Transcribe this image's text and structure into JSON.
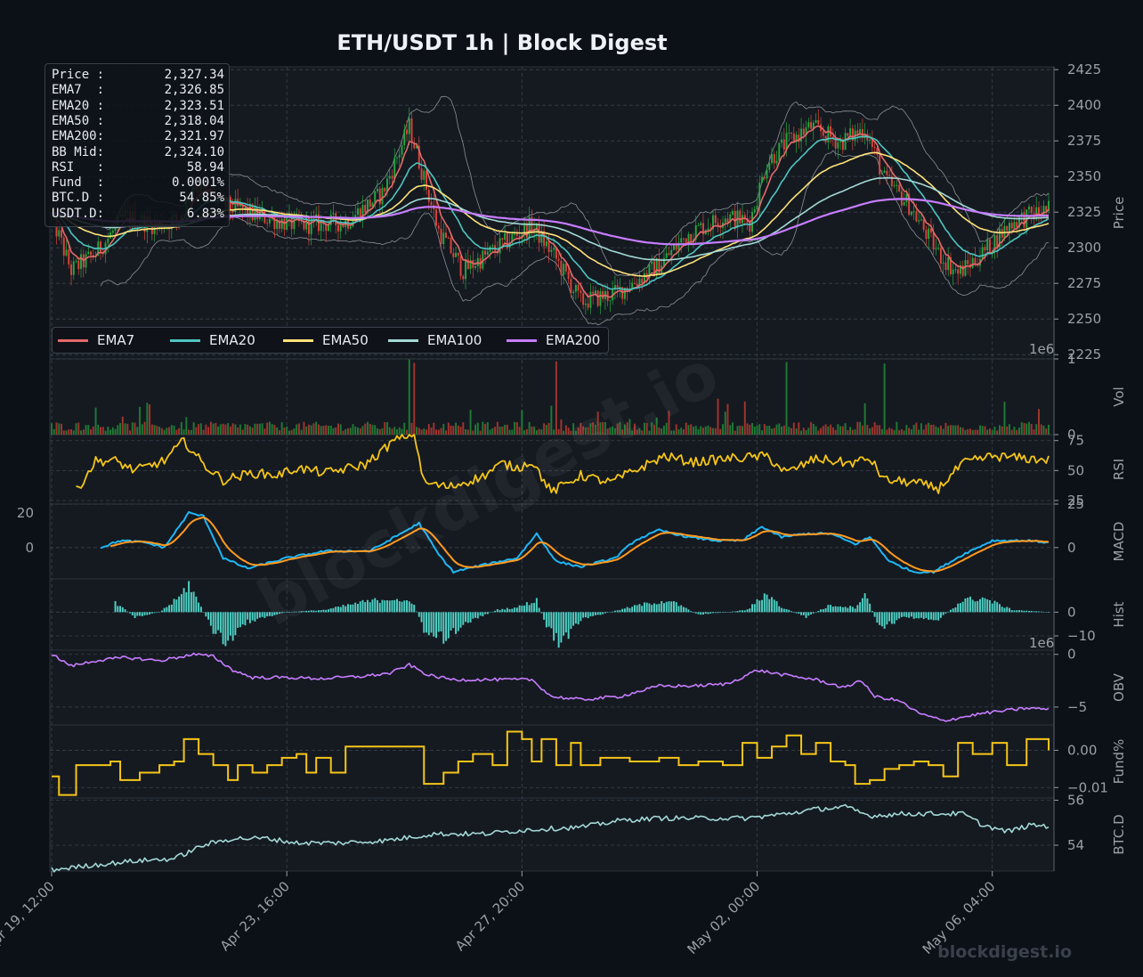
{
  "title": "ETH/USDT  1h  |  Block Digest",
  "watermark_center": "blockdigest.io",
  "watermark_corner": "blockdigest.io",
  "info_box": [
    {
      "key": "Price :",
      "value": "2,327.34"
    },
    {
      "key": "EMA7  :",
      "value": "2,326.85"
    },
    {
      "key": "EMA20 :",
      "value": "2,323.51"
    },
    {
      "key": "EMA50 :",
      "value": "2,318.04"
    },
    {
      "key": "EMA200:",
      "value": "2,321.97"
    },
    {
      "key": "BB Mid:",
      "value": "2,324.10"
    },
    {
      "key": "RSI   :",
      "value": "58.94"
    },
    {
      "key": "Fund  :",
      "value": "0.0001%"
    },
    {
      "key": "BTC.D :",
      "value": "54.85%"
    },
    {
      "key": "USDT.D:",
      "value": "6.83%"
    }
  ],
  "legend": [
    {
      "name": "EMA7",
      "color": "#e36a6a"
    },
    {
      "name": "EMA20",
      "color": "#4fc5c1"
    },
    {
      "name": "EMA50",
      "color": "#ffe27a"
    },
    {
      "name": "EMA100",
      "color": "#a3d9d6"
    },
    {
      "name": "EMA200",
      "color": "#c77dff"
    }
  ],
  "colors": {
    "bg": "#0c1017",
    "panel": "#151a21",
    "grid": "#3a414b",
    "up": "#26a641",
    "down": "#d9453b",
    "rsi": "#f5c518",
    "macd": "#1fb6f5",
    "signal": "#ff9a1f",
    "hist": "#4fd1c5",
    "obv": "#c77dff",
    "fund": "#f5c518",
    "btcd": "#a3d9d6",
    "bb": "#8a8f96"
  },
  "chart_data": {
    "type": "line",
    "x_ticks": [
      "Apr 19, 12:00",
      "Apr 23, 16:00",
      "Apr 27, 20:00",
      "May 02, 00:00",
      "May 06, 04:00"
    ],
    "n_bars": 408,
    "price": {
      "ylabel": "Price",
      "ylim": [
        2222,
        2427
      ],
      "yticks": [
        "2425",
        "2400",
        "2375",
        "2350",
        "2325",
        "2300",
        "2275",
        "2250",
        "2225"
      ],
      "close_keyframes": [
        [
          0,
          2322
        ],
        [
          8,
          2284
        ],
        [
          18,
          2296
        ],
        [
          30,
          2322
        ],
        [
          42,
          2316
        ],
        [
          52,
          2320
        ],
        [
          58,
          2345
        ],
        [
          70,
          2330
        ],
        [
          85,
          2322
        ],
        [
          100,
          2316
        ],
        [
          120,
          2318
        ],
        [
          135,
          2338
        ],
        [
          146,
          2385
        ],
        [
          158,
          2312
        ],
        [
          168,
          2284
        ],
        [
          182,
          2300
        ],
        [
          196,
          2316
        ],
        [
          206,
          2292
        ],
        [
          216,
          2262
        ],
        [
          230,
          2268
        ],
        [
          238,
          2276
        ],
        [
          248,
          2288
        ],
        [
          260,
          2310
        ],
        [
          275,
          2322
        ],
        [
          285,
          2318
        ],
        [
          292,
          2360
        ],
        [
          300,
          2374
        ],
        [
          310,
          2385
        ],
        [
          322,
          2374
        ],
        [
          332,
          2384
        ],
        [
          340,
          2348
        ],
        [
          350,
          2330
        ],
        [
          362,
          2296
        ],
        [
          370,
          2282
        ],
        [
          380,
          2296
        ],
        [
          392,
          2318
        ],
        [
          407,
          2327
        ]
      ]
    },
    "volume": {
      "ylabel": "Vol",
      "ylim": [
        0,
        1
      ],
      "yticks": [
        "1",
        "0"
      ],
      "multiplier_label": "1e6"
    },
    "rsi": {
      "ylabel": "RSI",
      "ylim": [
        22,
        80
      ],
      "yticks": [
        "75",
        "50",
        "25"
      ],
      "start_bar": 10,
      "keyframes": [
        [
          10,
          33
        ],
        [
          18,
          58
        ],
        [
          26,
          58
        ],
        [
          34,
          50
        ],
        [
          46,
          58
        ],
        [
          54,
          75
        ],
        [
          62,
          55
        ],
        [
          70,
          42
        ],
        [
          82,
          48
        ],
        [
          92,
          46
        ],
        [
          100,
          52
        ],
        [
          112,
          48
        ],
        [
          128,
          55
        ],
        [
          140,
          75
        ],
        [
          148,
          82
        ],
        [
          152,
          40
        ],
        [
          162,
          36
        ],
        [
          176,
          45
        ],
        [
          184,
          56
        ],
        [
          190,
          52
        ],
        [
          196,
          58
        ],
        [
          204,
          32
        ],
        [
          216,
          46
        ],
        [
          228,
          40
        ],
        [
          240,
          52
        ],
        [
          250,
          62
        ],
        [
          262,
          57
        ],
        [
          276,
          60
        ],
        [
          292,
          62
        ],
        [
          300,
          48
        ],
        [
          312,
          60
        ],
        [
          326,
          56
        ],
        [
          334,
          60
        ],
        [
          340,
          42
        ],
        [
          352,
          40
        ],
        [
          362,
          35
        ],
        [
          372,
          56
        ],
        [
          384,
          62
        ],
        [
          398,
          60
        ],
        [
          407,
          59
        ]
      ]
    },
    "macd": {
      "ylabel": "MACD",
      "ylim": [
        -18,
        25
      ],
      "yticks": [
        "25",
        "0"
      ],
      "left_yticks": [
        "20",
        "0"
      ],
      "start_bar": 20,
      "keyframes": [
        [
          20,
          0
        ],
        [
          28,
          4
        ],
        [
          38,
          3
        ],
        [
          46,
          0
        ],
        [
          56,
          20
        ],
        [
          62,
          18
        ],
        [
          70,
          -6
        ],
        [
          80,
          -12
        ],
        [
          96,
          -6
        ],
        [
          112,
          -2
        ],
        [
          130,
          -2
        ],
        [
          140,
          6
        ],
        [
          150,
          14
        ],
        [
          158,
          -4
        ],
        [
          164,
          -14
        ],
        [
          176,
          -10
        ],
        [
          190,
          -6
        ],
        [
          198,
          8
        ],
        [
          206,
          -8
        ],
        [
          216,
          -11
        ],
        [
          230,
          -6
        ],
        [
          238,
          4
        ],
        [
          248,
          10
        ],
        [
          260,
          6
        ],
        [
          272,
          4
        ],
        [
          282,
          4
        ],
        [
          290,
          12
        ],
        [
          298,
          6
        ],
        [
          308,
          8
        ],
        [
          318,
          8
        ],
        [
          328,
          2
        ],
        [
          334,
          6
        ],
        [
          342,
          -8
        ],
        [
          352,
          -14
        ],
        [
          360,
          -14
        ],
        [
          372,
          -4
        ],
        [
          384,
          4
        ],
        [
          398,
          4
        ],
        [
          407,
          3
        ]
      ]
    },
    "hist": {
      "ylabel": "Hist",
      "ylim": [
        -16,
        14
      ],
      "yticks": [
        "0",
        "−10"
      ],
      "start_bar": 26,
      "keyframes": [
        [
          26,
          4
        ],
        [
          34,
          -2
        ],
        [
          44,
          0
        ],
        [
          52,
          6
        ],
        [
          56,
          12
        ],
        [
          60,
          4
        ],
        [
          66,
          -8
        ],
        [
          72,
          -13
        ],
        [
          80,
          -4
        ],
        [
          96,
          0
        ],
        [
          112,
          1
        ],
        [
          126,
          4
        ],
        [
          140,
          6
        ],
        [
          148,
          3
        ],
        [
          152,
          -8
        ],
        [
          160,
          -11
        ],
        [
          170,
          -4
        ],
        [
          182,
          1
        ],
        [
          190,
          2
        ],
        [
          198,
          5
        ],
        [
          202,
          -6
        ],
        [
          208,
          -14
        ],
        [
          216,
          -3
        ],
        [
          228,
          0
        ],
        [
          240,
          3
        ],
        [
          252,
          5
        ],
        [
          264,
          -1
        ],
        [
          276,
          0
        ],
        [
          284,
          1
        ],
        [
          292,
          8
        ],
        [
          298,
          2
        ],
        [
          308,
          -2
        ],
        [
          318,
          3
        ],
        [
          328,
          2
        ],
        [
          332,
          8
        ],
        [
          338,
          -7
        ],
        [
          348,
          -2
        ],
        [
          362,
          -3
        ],
        [
          372,
          5
        ],
        [
          380,
          6
        ],
        [
          392,
          1
        ],
        [
          407,
          0
        ]
      ]
    },
    "obv": {
      "ylabel": "OBV",
      "ylim": [
        -6.7,
        0.4
      ],
      "yticks": [
        "0",
        "−5"
      ],
      "multiplier_label": "1e6",
      "keyframes": [
        [
          0,
          0
        ],
        [
          8,
          -1.1
        ],
        [
          18,
          -0.6
        ],
        [
          30,
          -0.3
        ],
        [
          44,
          -0.6
        ],
        [
          58,
          0
        ],
        [
          66,
          -0.2
        ],
        [
          74,
          -1.5
        ],
        [
          82,
          -2.2
        ],
        [
          96,
          -2.2
        ],
        [
          110,
          -2.3
        ],
        [
          126,
          -2.1
        ],
        [
          138,
          -1.8
        ],
        [
          146,
          -1
        ],
        [
          154,
          -2
        ],
        [
          164,
          -2.4
        ],
        [
          180,
          -2.4
        ],
        [
          196,
          -2.4
        ],
        [
          204,
          -4
        ],
        [
          216,
          -4.3
        ],
        [
          232,
          -4
        ],
        [
          248,
          -3
        ],
        [
          262,
          -3
        ],
        [
          276,
          -2.8
        ],
        [
          288,
          -1.5
        ],
        [
          300,
          -2
        ],
        [
          312,
          -2.4
        ],
        [
          324,
          -3.2
        ],
        [
          330,
          -2.4
        ],
        [
          336,
          -4
        ],
        [
          346,
          -4.4
        ],
        [
          354,
          -5.6
        ],
        [
          364,
          -6.3
        ],
        [
          380,
          -5.6
        ],
        [
          398,
          -5.1
        ],
        [
          407,
          -5.2
        ]
      ]
    },
    "funding": {
      "ylabel": "Fund%",
      "ylim": [
        -0.0128,
        0.0068
      ],
      "yticks": [
        "0.00",
        "−0.01"
      ],
      "steps": [
        [
          0,
          -0.007
        ],
        [
          3,
          -0.012
        ],
        [
          10,
          -0.004
        ],
        [
          20,
          -0.004
        ],
        [
          24,
          -0.003
        ],
        [
          28,
          -0.008
        ],
        [
          36,
          -0.006
        ],
        [
          44,
          -0.004
        ],
        [
          50,
          -0.003
        ],
        [
          54,
          0.003
        ],
        [
          60,
          -0.001
        ],
        [
          66,
          -0.004
        ],
        [
          72,
          -0.008
        ],
        [
          76,
          -0.004
        ],
        [
          82,
          -0.006
        ],
        [
          88,
          -0.004
        ],
        [
          94,
          -0.002
        ],
        [
          100,
          -0.001
        ],
        [
          104,
          -0.006
        ],
        [
          108,
          -0.002
        ],
        [
          114,
          -0.006
        ],
        [
          120,
          0.001
        ],
        [
          140,
          0.001
        ],
        [
          152,
          -0.009
        ],
        [
          160,
          -0.006
        ],
        [
          166,
          -0.003
        ],
        [
          172,
          -0.001
        ],
        [
          180,
          -0.004
        ],
        [
          186,
          0.005
        ],
        [
          192,
          0.003
        ],
        [
          196,
          -0.003
        ],
        [
          200,
          0.003
        ],
        [
          206,
          -0.004
        ],
        [
          212,
          0.002
        ],
        [
          216,
          -0.004
        ],
        [
          224,
          -0.002
        ],
        [
          236,
          -0.003
        ],
        [
          248,
          -0.002
        ],
        [
          256,
          -0.004
        ],
        [
          264,
          -0.003
        ],
        [
          274,
          -0.004
        ],
        [
          282,
          0.002
        ],
        [
          288,
          -0.002
        ],
        [
          294,
          0.001
        ],
        [
          300,
          0.004
        ],
        [
          306,
          -0.001
        ],
        [
          312,
          0.002
        ],
        [
          318,
          -0.003
        ],
        [
          324,
          -0.004
        ],
        [
          328,
          -0.009
        ],
        [
          334,
          -0.008
        ],
        [
          340,
          -0.005
        ],
        [
          346,
          -0.004
        ],
        [
          352,
          -0.003
        ],
        [
          358,
          -0.004
        ],
        [
          364,
          -0.007
        ],
        [
          370,
          0.002
        ],
        [
          376,
          -0.001
        ],
        [
          384,
          0.002
        ],
        [
          390,
          -0.004
        ],
        [
          398,
          0.003
        ],
        [
          407,
          0
        ]
      ]
    },
    "btcd": {
      "ylabel": "BTC.D",
      "ylim": [
        52.85,
        56.1
      ],
      "yticks": [
        "56",
        "54"
      ],
      "keyframes": [
        [
          0,
          52.9
        ],
        [
          16,
          53.1
        ],
        [
          34,
          53.3
        ],
        [
          50,
          53.4
        ],
        [
          62,
          54
        ],
        [
          74,
          54.3
        ],
        [
          88,
          54.3
        ],
        [
          100,
          54.1
        ],
        [
          118,
          54.1
        ],
        [
          136,
          54.2
        ],
        [
          156,
          54.5
        ],
        [
          176,
          54.5
        ],
        [
          196,
          54.7
        ],
        [
          216,
          54.8
        ],
        [
          232,
          55.1
        ],
        [
          248,
          55.2
        ],
        [
          264,
          55.2
        ],
        [
          284,
          55.2
        ],
        [
          300,
          55.4
        ],
        [
          312,
          55.6
        ],
        [
          324,
          55.7
        ],
        [
          334,
          55.3
        ],
        [
          348,
          55.4
        ],
        [
          360,
          55.4
        ],
        [
          372,
          55.4
        ],
        [
          380,
          54.9
        ],
        [
          390,
          54.6
        ],
        [
          400,
          54.9
        ],
        [
          407,
          54.85
        ]
      ]
    }
  }
}
